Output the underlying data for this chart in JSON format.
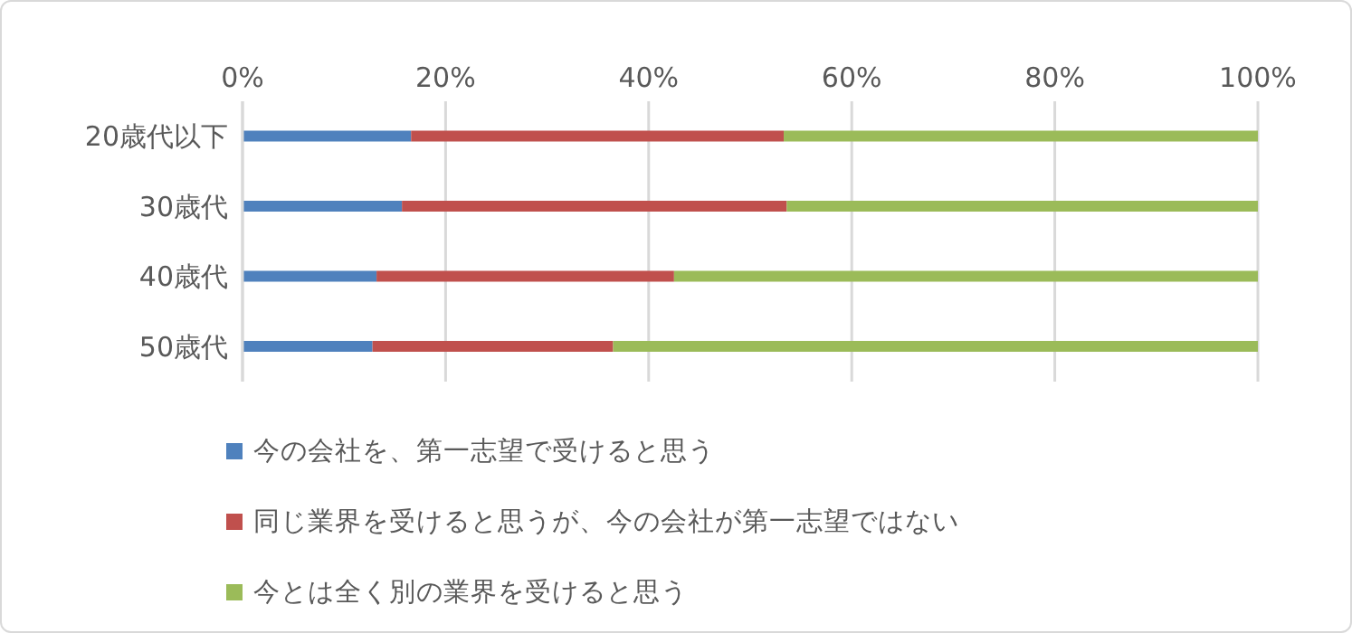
{
  "chart_data": {
    "type": "bar",
    "orientation": "horizontal",
    "stacked": true,
    "categories": [
      "20歳代以下",
      "30歳代",
      "40歳代",
      "50歳代"
    ],
    "series": [
      {
        "name": "今の会社を、第一志望で受けると思う",
        "color": "#4f81bd",
        "values": [
          16.6,
          15.7,
          13.2,
          12.8
        ]
      },
      {
        "name": "同じ業界を受けると思うが、今の会社が第一志望ではない",
        "color": "#c0504d",
        "values": [
          36.7,
          37.9,
          29.3,
          23.7
        ]
      },
      {
        "name": "今とは全く別の業界を受けると思う",
        "color": "#9bbb59",
        "values": [
          46.7,
          46.4,
          57.5,
          63.5
        ]
      }
    ],
    "xlim": [
      0,
      100
    ],
    "xticks": [
      {
        "value": 0,
        "label": "0%"
      },
      {
        "value": 20,
        "label": "20%"
      },
      {
        "value": 40,
        "label": "40%"
      },
      {
        "value": 60,
        "label": "60%"
      },
      {
        "value": 80,
        "label": "80%"
      },
      {
        "value": 100,
        "label": "100%"
      }
    ],
    "grid": "x",
    "legend": "bottom"
  }
}
